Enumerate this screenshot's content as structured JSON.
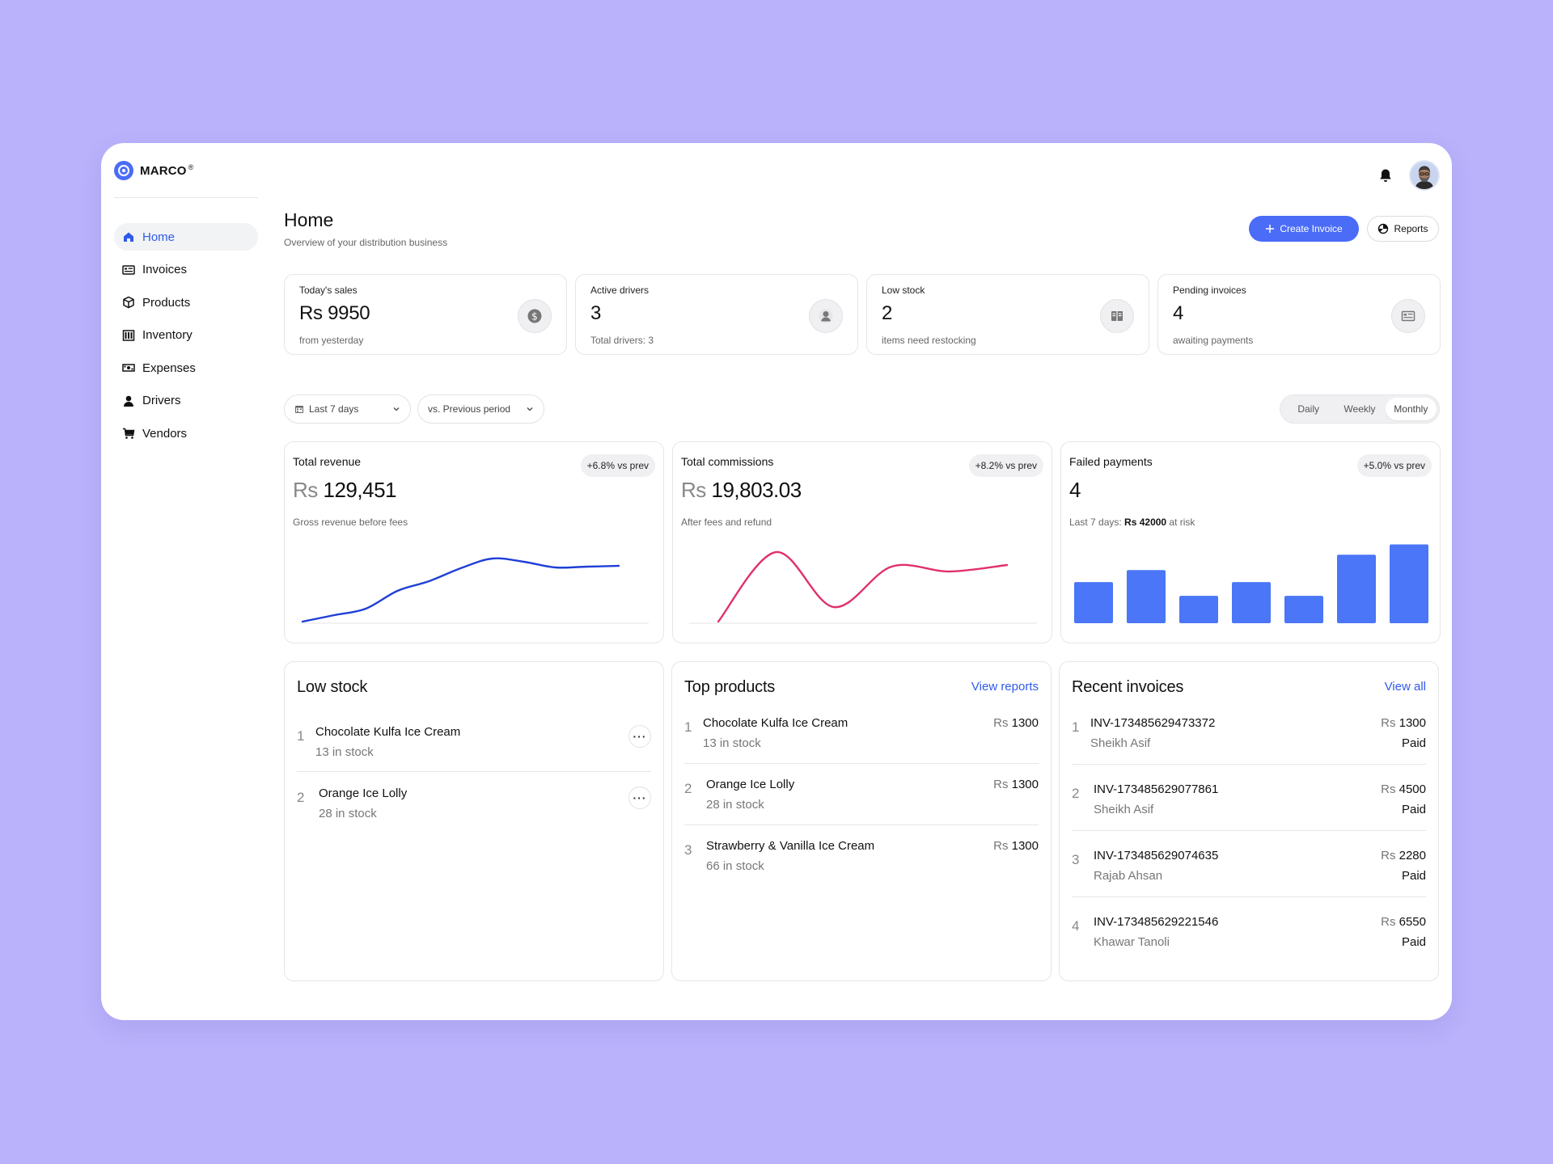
{
  "brand": {
    "name": "MARCO",
    "mark": "®"
  },
  "sidebar": {
    "items": [
      {
        "label": "Home",
        "icon": "home-icon",
        "active": true
      },
      {
        "label": "Invoices",
        "icon": "invoice-icon"
      },
      {
        "label": "Products",
        "icon": "box-icon"
      },
      {
        "label": "Inventory",
        "icon": "inventory-icon"
      },
      {
        "label": "Expenses",
        "icon": "money-icon"
      },
      {
        "label": "Drivers",
        "icon": "person-icon"
      },
      {
        "label": "Vendors",
        "icon": "cart-icon"
      }
    ]
  },
  "header": {
    "title": "Home",
    "subtitle": "Overview of your distribution business",
    "create_invoice": "Create Invoice",
    "reports": "Reports"
  },
  "stats": [
    {
      "label": "Today's sales",
      "value": "Rs 9950",
      "sub": "from yesterday",
      "icon": "dollar-icon"
    },
    {
      "label": "Active drivers",
      "value": "3",
      "sub": "Total drivers: 3",
      "icon": "person-icon"
    },
    {
      "label": "Low stock",
      "value": "2",
      "sub": "items need restocking",
      "icon": "book-icon"
    },
    {
      "label": "Pending invoices",
      "value": "4",
      "sub": "awaiting payments",
      "icon": "invoice-icon"
    }
  ],
  "filters": {
    "range": "Last 7 days",
    "compare": "vs. Previous period",
    "segments": [
      "Daily",
      "Weekly",
      "Monthly"
    ],
    "active_segment": "Monthly"
  },
  "charts": [
    {
      "title": "Total revenue",
      "badge": "+6.8% vs prev",
      "currency": "Rs",
      "value": "129,451",
      "sub": "Gross revenue before fees",
      "color": "#1f3fd6",
      "type": "line",
      "values": [
        2,
        10,
        18,
        40,
        52,
        68,
        80,
        76,
        69,
        70,
        71
      ]
    },
    {
      "title": "Total commissions",
      "badge": "+8.2% vs prev",
      "currency": "Rs",
      "value": "19,803.03",
      "sub": "After fees and refund",
      "color": "#e0306f",
      "type": "line",
      "values": [
        2,
        88,
        20,
        70,
        64,
        72
      ]
    },
    {
      "title": "Failed payments",
      "badge": "+5.0% vs prev",
      "currency": "",
      "value": "4",
      "sub_prefix": "Last 7 days: ",
      "sub_bold": "Rs 42000",
      "sub_suffix": " at risk",
      "color": "#4a76f7",
      "type": "bar",
      "values": [
        48,
        62,
        32,
        48,
        32,
        80,
        92
      ]
    }
  ],
  "low_stock": {
    "title": "Low stock",
    "items": [
      {
        "index": "1",
        "name": "Chocolate Kulfa  Ice Cream",
        "sub": "13 in stock"
      },
      {
        "index": "2",
        "name": "Orange Ice Lolly",
        "sub": "28 in stock"
      }
    ]
  },
  "top_products": {
    "title": "Top products",
    "link": "View reports",
    "items": [
      {
        "index": "1",
        "name": "Chocolate Kulfa  Ice Cream",
        "sub": "13 in stock",
        "currency": "Rs",
        "price": "1300"
      },
      {
        "index": "2",
        "name": "Orange Ice Lolly",
        "sub": "28 in stock",
        "currency": "Rs",
        "price": "1300"
      },
      {
        "index": "3",
        "name": "Strawberry & Vanilla  Ice Cream",
        "sub": "66 in stock",
        "currency": "Rs",
        "price": "1300"
      }
    ]
  },
  "recent_invoices": {
    "title": "Recent invoices",
    "link": "View all",
    "items": [
      {
        "index": "1",
        "id": "INV-173485629473372",
        "customer": "Sheikh Asif",
        "currency": "Rs",
        "amount": "1300",
        "status": "Paid"
      },
      {
        "index": "2",
        "id": "INV-173485629077861",
        "customer": "Sheikh Asif",
        "currency": "Rs",
        "amount": "4500",
        "status": "Paid"
      },
      {
        "index": "3",
        "id": "INV-173485629074635",
        "customer": "Rajab Ahsan",
        "currency": "Rs",
        "amount": "2280",
        "status": "Paid"
      },
      {
        "index": "4",
        "id": "INV-173485629221546",
        "customer": "Khawar Tanoli",
        "currency": "Rs",
        "amount": "6550",
        "status": "Paid"
      }
    ]
  }
}
